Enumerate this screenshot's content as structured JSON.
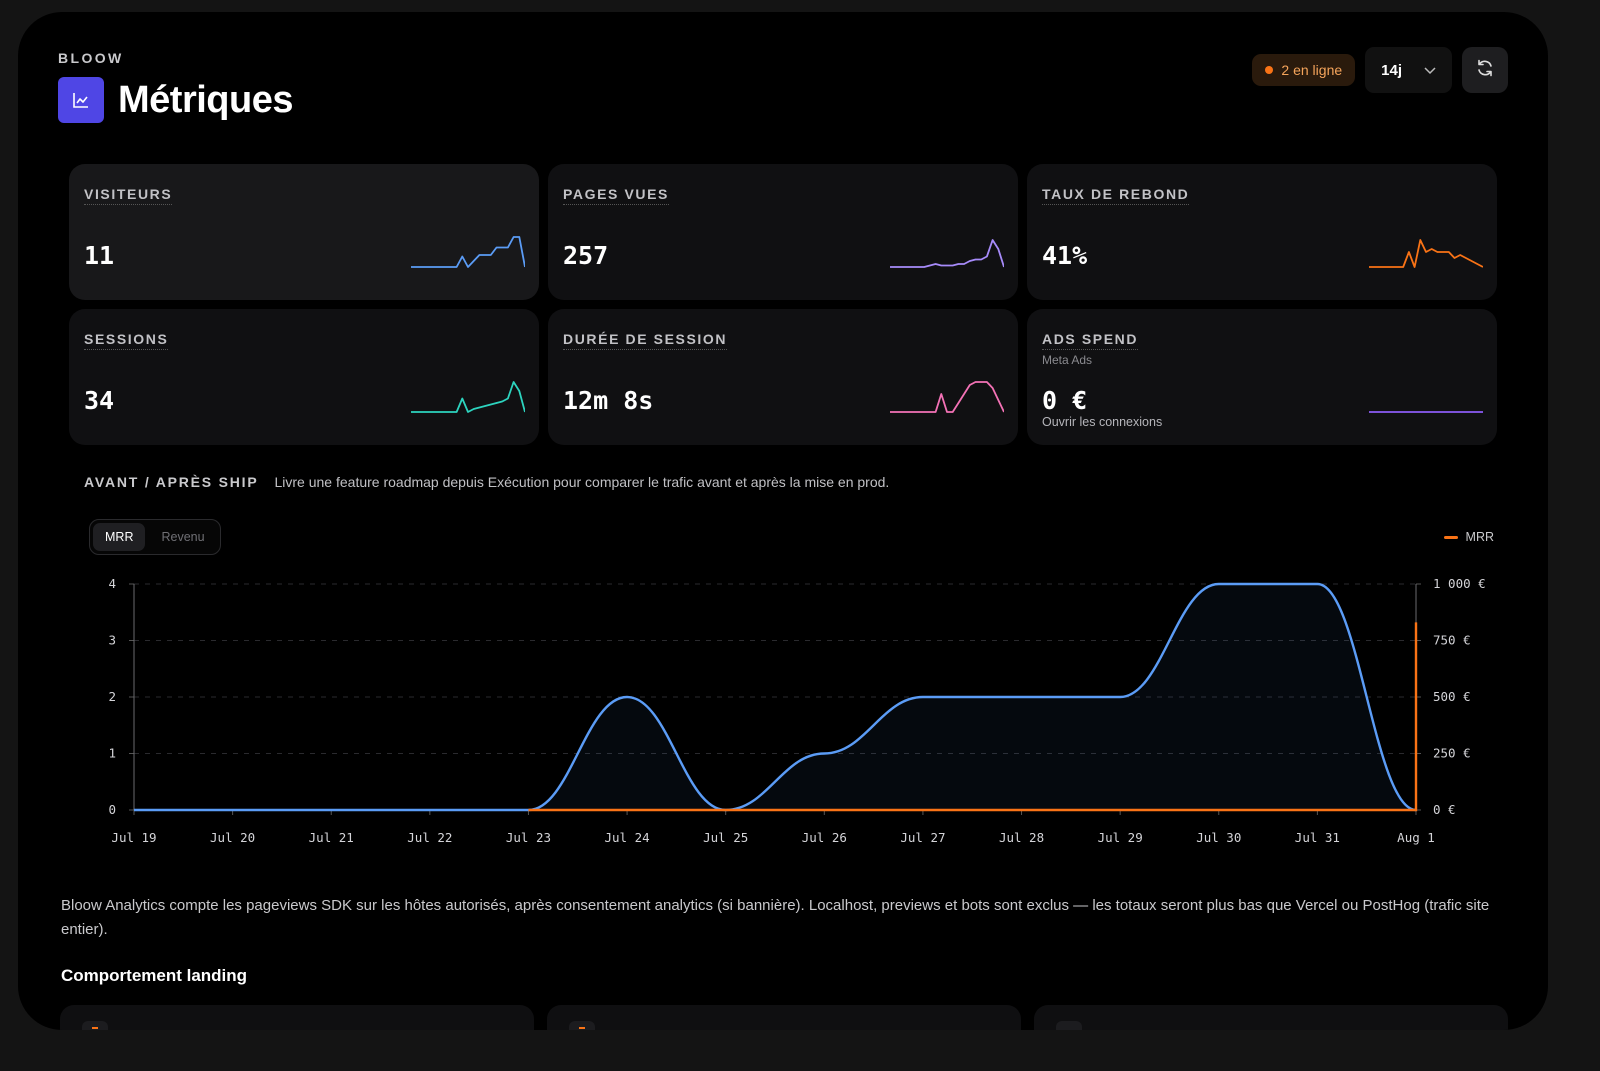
{
  "header": {
    "brand": "BLOOW",
    "title": "Métriques",
    "title_icon": "line-chart-icon",
    "online_badge": "2 en ligne",
    "period": "14j",
    "refresh_icon": "refresh-icon"
  },
  "colors": {
    "accent": "#4f46e5",
    "blue": "#5b9cf6",
    "purple": "#a78bfa",
    "orange": "#f97316",
    "teal": "#2dd4bf",
    "pink": "#f472b6",
    "violet": "#8b5cf6"
  },
  "cards": [
    {
      "label": "VISITEURS",
      "value": "11",
      "color": "#5b9cf6",
      "spark": [
        0,
        0,
        0,
        0,
        0,
        0,
        0,
        0,
        0,
        0.35,
        0,
        0.2,
        0.4,
        0.4,
        0.4,
        0.65,
        0.65,
        0.65,
        1,
        1,
        0
      ]
    },
    {
      "label": "PAGES VUES",
      "value": "257",
      "color": "#a78bfa",
      "spark": [
        0,
        0,
        0,
        0,
        0,
        0,
        0,
        0.05,
        0.1,
        0.05,
        0.05,
        0.05,
        0.1,
        0.1,
        0.2,
        0.25,
        0.25,
        0.35,
        0.9,
        0.6,
        0
      ]
    },
    {
      "label": "TAUX DE REBOND",
      "value": "41%",
      "color": "#f97316",
      "spark": [
        0,
        0,
        0,
        0,
        0,
        0,
        0,
        0.5,
        0,
        0.9,
        0.5,
        0.6,
        0.5,
        0.5,
        0.5,
        0.3,
        0.4,
        0.3,
        0.2,
        0.1,
        0
      ]
    },
    {
      "label": "SESSIONS",
      "value": "34",
      "color": "#2dd4bf",
      "spark": [
        0,
        0,
        0,
        0,
        0,
        0,
        0,
        0,
        0,
        0.45,
        0,
        0.1,
        0.15,
        0.2,
        0.25,
        0.3,
        0.35,
        0.45,
        1,
        0.7,
        0
      ]
    },
    {
      "label": "DURÉE DE SESSION",
      "value": "12m 8s",
      "color": "#f472b6",
      "spark": [
        0,
        0,
        0,
        0,
        0,
        0,
        0,
        0,
        0,
        0.6,
        0,
        0,
        0.3,
        0.6,
        0.9,
        1,
        1,
        1,
        0.8,
        0.4,
        0
      ]
    },
    {
      "label": "ADS SPEND",
      "sub": "Meta Ads",
      "value": "0 €",
      "link": "Ouvrir les connexions",
      "color": "#8b5cf6",
      "spark": [
        0,
        0,
        0,
        0,
        0,
        0,
        0,
        0,
        0,
        0,
        0,
        0,
        0,
        0,
        0,
        0,
        0,
        0,
        0,
        0,
        0
      ]
    }
  ],
  "ship": {
    "label": "AVANT / APRÈS SHIP",
    "description": "Livre une feature roadmap depuis Exécution pour comparer le trafic avant et après la mise en prod."
  },
  "chart_toggle": {
    "options": [
      "MRR",
      "Revenu"
    ],
    "selected": "MRR"
  },
  "chart_legend": "MRR",
  "chart_data": {
    "type": "line",
    "x": [
      "Jul 19",
      "Jul 20",
      "Jul 21",
      "Jul 22",
      "Jul 23",
      "Jul 24",
      "Jul 25",
      "Jul 26",
      "Jul 27",
      "Jul 28",
      "Jul 29",
      "Jul 30",
      "Jul 31",
      "Aug 1"
    ],
    "series": [
      {
        "axis": "left",
        "color": "#5b9cf6",
        "values": [
          0,
          0,
          0,
          0,
          0,
          2,
          0,
          1,
          2,
          2,
          2,
          4,
          4,
          0
        ]
      },
      {
        "name": "MRR",
        "axis": "right",
        "color": "#f97316",
        "values": [
          0,
          0,
          0,
          0,
          0,
          0,
          0,
          0,
          0,
          0,
          0,
          0,
          0,
          830
        ]
      }
    ],
    "y_left": {
      "ticks": [
        "0",
        "1",
        "2",
        "3",
        "4"
      ],
      "range": [
        0,
        4
      ]
    },
    "y_right": {
      "ticks": [
        "0 €",
        "250 €",
        "500 €",
        "750 €",
        "1 000 €"
      ],
      "range": [
        0,
        1000
      ]
    },
    "grid": "horizontal dashed",
    "legend_position": "top-right"
  },
  "footnote": "Bloow Analytics compte les pageviews SDK sur les hôtes autorisés, après consentement analytics (si bannière). Localhost, previews et bots sont exclus — les totaux seront plus bas que Vercel ou PostHog (trafic site entier).",
  "section_title": "Comportement landing"
}
